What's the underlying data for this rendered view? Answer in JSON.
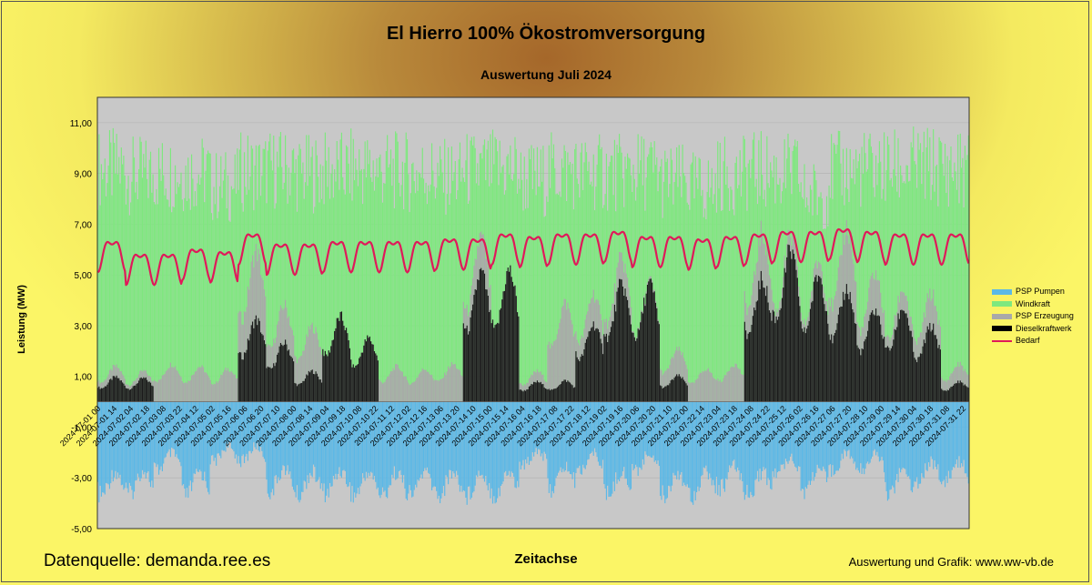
{
  "title": "El Hierro 100% Ökostromversorgung",
  "subtitle": "Auswertung Juli 2024",
  "source": "Datenquelle: demanda.ree.es",
  "credit": "Auswertung und Grafik: www.ww-vb.de",
  "chart_data": {
    "type": "area",
    "title": "El Hierro 100% Ökostromversorgung",
    "subtitle": "Auswertung Juli 2024",
    "xlabel": "Zeitachse",
    "ylabel": "Leistung (MW)",
    "ylim": [
      -5,
      12
    ],
    "yticks": [
      "11,00",
      "9,00",
      "7,00",
      "5,00",
      "3,00",
      "1,00",
      "-1,00",
      "-3,00",
      "-5,00"
    ],
    "ytick_values": [
      11,
      9,
      7,
      5,
      3,
      1,
      -1,
      -3,
      -5
    ],
    "grid": true,
    "legend_position": "right",
    "x_tick_labels": [
      "2024-07-01 00",
      "2024-07-01 14",
      "2024-07-02 04",
      "2024-07-02 18",
      "2024-07-03 08",
      "2024-07-03 22",
      "2024-07-04 12",
      "2024-07-05 02",
      "2024-07-05 16",
      "2024-07-06 06",
      "2024-07-06 20",
      "2024-07-07 10",
      "2024-07-08 00",
      "2024-07-08 14",
      "2024-07-09 04",
      "2024-07-09 18",
      "2024-07-10 08",
      "2024-07-10 22",
      "2024-07-11 12",
      "2024-07-12 02",
      "2024-07-12 16",
      "2024-07-13 06",
      "2024-07-13 20",
      "2024-07-14 10",
      "2024-07-15 00",
      "2024-07-15 14",
      "2024-07-16 04",
      "2024-07-16 18",
      "2024-07-17 08",
      "2024-07-17 22",
      "2024-07-18 12",
      "2024-07-19 02",
      "2024-07-19 16",
      "2024-07-20 06",
      "2024-07-20 20",
      "2024-07-21 10",
      "2024-07-22 00",
      "2024-07-22 14",
      "2024-07-23 04",
      "2024-07-23 18",
      "2024-07-24 08",
      "2024-07-24 22",
      "2024-07-25 12",
      "2024-07-26 02",
      "2024-07-26 16",
      "2024-07-27 06",
      "2024-07-27 20",
      "2024-07-28 10",
      "2024-07-29 00",
      "2024-07-29 14",
      "2024-07-30 04",
      "2024-07-30 18",
      "2024-07-31 08",
      "2024-07-31 22"
    ],
    "series": [
      {
        "name": "PSP Pumpen",
        "color": "#5bb8e6",
        "daily_min": [
          -4.1,
          -4.0,
          -3.0,
          -4.1,
          -2.6,
          -2.6,
          -3.9,
          -4.1,
          -4.0,
          -4.1,
          -4.1,
          -4.1,
          -4.1,
          -4.1,
          -4.1,
          -2.8,
          -3.8,
          -3.0,
          -4.1,
          -3.0,
          -4.1,
          -4.1,
          -3.8,
          -4.1,
          -3.2,
          -3.9,
          -3.0,
          -3.0,
          -4.0,
          -3.5,
          -3.5
        ]
      },
      {
        "name": "Windkraft",
        "color": "#7ee87e",
        "daily_max": [
          10.8,
          10.5,
          10.6,
          10.6,
          10.0,
          10.7,
          10.8,
          10.6,
          10.7,
          10.8,
          10.7,
          10.6,
          10.4,
          10.7,
          10.8,
          10.3,
          10.7,
          10.6,
          10.6,
          10.7,
          10.2,
          9.9,
          10.5,
          10.7,
          10.6,
          9.6,
          10.7,
          10.8,
          10.8,
          10.9,
          10.8
        ]
      },
      {
        "name": "PSP Erzeugung",
        "color": "#a9a9a9",
        "daily_max": [
          1.5,
          1.3,
          1.6,
          1.5,
          1.4,
          6.4,
          4.1,
          3.2,
          3.2,
          2.4,
          1.5,
          1.4,
          1.6,
          7.0,
          1.5,
          1.3,
          4.2,
          4.6,
          6.1,
          5.1,
          2.2,
          1.4,
          1.6,
          7.2,
          7.0,
          6.0,
          7.4,
          5.5,
          4.8,
          4.6,
          1.6
        ]
      },
      {
        "name": "Dieselkraftwerk",
        "color": "#000000",
        "daily_max": [
          1.05,
          1.0,
          0,
          0,
          0,
          3.5,
          2.5,
          1.3,
          3.6,
          2.7,
          0,
          0,
          0,
          5.5,
          5.6,
          0.85,
          0.9,
          3.3,
          5.0,
          5.0,
          1.1,
          0,
          0,
          5.2,
          6.4,
          5.4,
          4.8,
          3.9,
          4.0,
          3.2,
          0.85
        ]
      },
      {
        "name": "Bedarf",
        "color": "#e0195a",
        "daily_mean": [
          5.9,
          5.4,
          5.4,
          5.6,
          5.5,
          6.2,
          5.8,
          5.8,
          5.9,
          5.9,
          5.9,
          5.9,
          6.0,
          6.0,
          6.2,
          6.1,
          6.2,
          6.2,
          6.3,
          6.1,
          6.1,
          6.0,
          6.1,
          6.2,
          6.3,
          6.3,
          6.4,
          6.3,
          6.2,
          6.2,
          6.2
        ]
      }
    ]
  }
}
